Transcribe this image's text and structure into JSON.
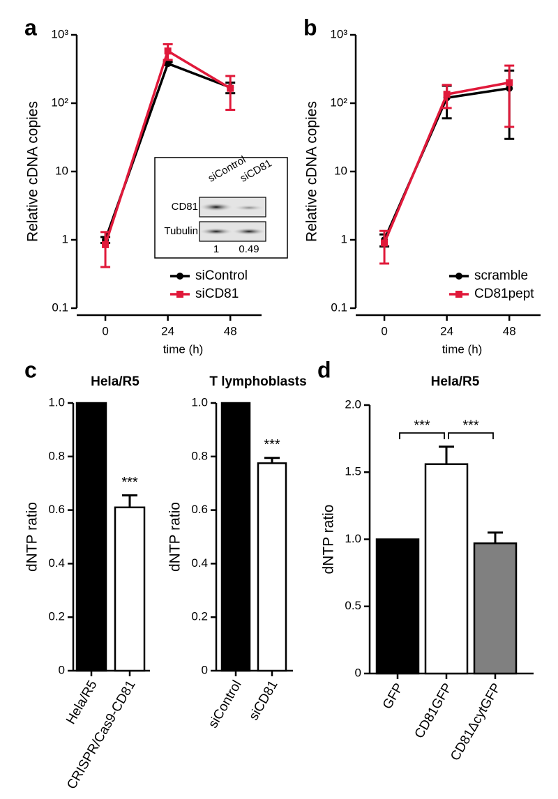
{
  "chart_data": [
    {
      "type": "line",
      "panel_label": "a",
      "ylabel": "Relative cDNA copies",
      "xlabel": "time (h)",
      "log_y": true,
      "x": [
        0,
        24,
        48
      ],
      "xlim": [
        -11,
        60
      ],
      "xticks": [
        0,
        24,
        48
      ],
      "ylim": [
        0.1,
        1000
      ],
      "yticks": [
        0.1,
        1,
        10,
        {
          "value": 100,
          "label": "10²"
        },
        {
          "value": 1000,
          "label": "10³"
        }
      ],
      "legend": "lower right",
      "series": [
        {
          "name": "siControl",
          "color": "#000000",
          "marker": "circle",
          "values": [
            1,
            380,
            170
          ],
          "errors": [
            0.1,
            20,
            30
          ]
        },
        {
          "name": "siCD81",
          "color": "#e0193a",
          "marker": "square",
          "values": [
            0.85,
            580,
            165
          ],
          "errors": [
            0.45,
            150,
            85
          ]
        }
      ],
      "inset": {
        "lanes": [
          "siControl",
          "siCD81"
        ],
        "rows": [
          "CD81",
          "Tubulin"
        ],
        "quantification": [
          1,
          0.49
        ]
      }
    },
    {
      "type": "line",
      "panel_label": "b",
      "ylabel": "Relative cDNA copies",
      "xlabel": "time (h)",
      "log_y": true,
      "x": [
        0,
        24,
        48
      ],
      "xlim": [
        -11,
        60
      ],
      "xticks": [
        0,
        24,
        48
      ],
      "ylim": [
        0.1,
        1000
      ],
      "yticks": [
        0.1,
        1,
        10,
        {
          "value": 100,
          "label": "10²"
        },
        {
          "value": 1000,
          "label": "10³"
        }
      ],
      "legend": "lower right",
      "series": [
        {
          "name": "scramble",
          "color": "#000000",
          "marker": "circle",
          "values": [
            1,
            120,
            165
          ],
          "errors": [
            0.2,
            60,
            135
          ]
        },
        {
          "name": "CD81pept",
          "color": "#e0193a",
          "marker": "square",
          "values": [
            0.9,
            135,
            200
          ],
          "errors": [
            0.45,
            50,
            155
          ]
        }
      ]
    },
    {
      "type": "bar",
      "panel_label": "c",
      "title": "Hela/R5",
      "ylabel": "dNTP ratio",
      "categories": [
        "Hela/R5",
        "CRISPR/Cas9-CD81"
      ],
      "values": [
        1.0,
        0.61
      ],
      "errors": [
        null,
        0.045
      ],
      "colors": [
        "#000000",
        "#ffffff"
      ],
      "ylim": [
        0,
        1
      ],
      "yticks": [
        0,
        0.2,
        0.4,
        0.6,
        0.8,
        {
          "value": 1,
          "label": "1.0"
        }
      ],
      "annotations": [
        "***"
      ]
    },
    {
      "type": "bar",
      "title": "T lymphoblasts",
      "ylabel": "dNTP ratio",
      "categories": [
        "siControl",
        "siCD81"
      ],
      "values": [
        1.0,
        0.775
      ],
      "errors": [
        null,
        0.02
      ],
      "colors": [
        "#000000",
        "#ffffff"
      ],
      "ylim": [
        0,
        1
      ],
      "yticks": [
        0,
        0.2,
        0.4,
        0.6,
        0.8,
        {
          "value": 1,
          "label": "1.0"
        }
      ],
      "annotations": [
        "***"
      ]
    },
    {
      "type": "bar",
      "panel_label": "d",
      "title": "Hela/R5",
      "ylabel": "dNTP ratio",
      "categories": [
        "GFP",
        "CD81GFP",
        "CD81ΔcytGFP"
      ],
      "values": [
        1.0,
        1.56,
        0.97
      ],
      "errors": [
        null,
        0.13,
        0.08
      ],
      "colors": [
        "#000000",
        "#ffffff",
        "#808080"
      ],
      "ylim": [
        0,
        2
      ],
      "yticks": [
        0,
        0.5,
        {
          "value": 1,
          "label": "1.0"
        },
        1.5,
        {
          "value": 2,
          "label": "2.0"
        }
      ],
      "brackets": [
        "***",
        "***"
      ]
    }
  ]
}
